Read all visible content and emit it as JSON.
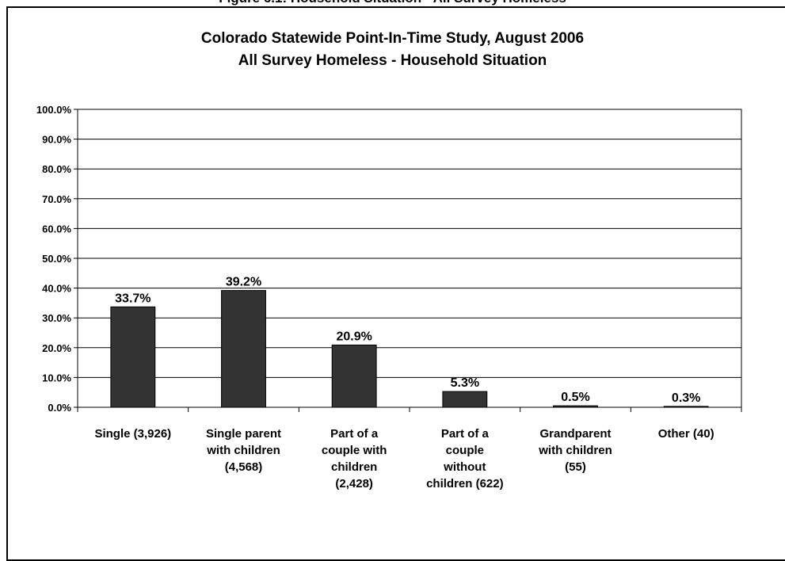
{
  "top_caption": "Figure 6.1: Household Situation - All Survey Homeless",
  "chart_data": {
    "type": "bar",
    "title": "Colorado Statewide Point-In-Time Study, August 2006",
    "subtitle": "All Survey Homeless - Household Situation",
    "xlabel": "",
    "ylabel": "",
    "ylim": [
      0,
      100
    ],
    "yticks": [
      "0.0%",
      "10.0%",
      "20.0%",
      "30.0%",
      "40.0%",
      "50.0%",
      "60.0%",
      "70.0%",
      "80.0%",
      "90.0%",
      "100.0%"
    ],
    "grid": true,
    "categories": [
      [
        "Single (3,926)"
      ],
      [
        "Single parent",
        "with children",
        "(4,568)"
      ],
      [
        "Part of a",
        "couple with",
        "children",
        "(2,428)"
      ],
      [
        "Part of a",
        "couple",
        "without",
        "children (622)"
      ],
      [
        "Grandparent",
        "with children",
        "(55)"
      ],
      [
        "Other (40)"
      ]
    ],
    "values": [
      33.7,
      39.2,
      20.9,
      5.3,
      0.5,
      0.3
    ],
    "data_labels": [
      "33.7%",
      "39.2%",
      "20.9%",
      "5.3%",
      "0.5%",
      "0.3%"
    ],
    "bar_color": "#333333"
  }
}
